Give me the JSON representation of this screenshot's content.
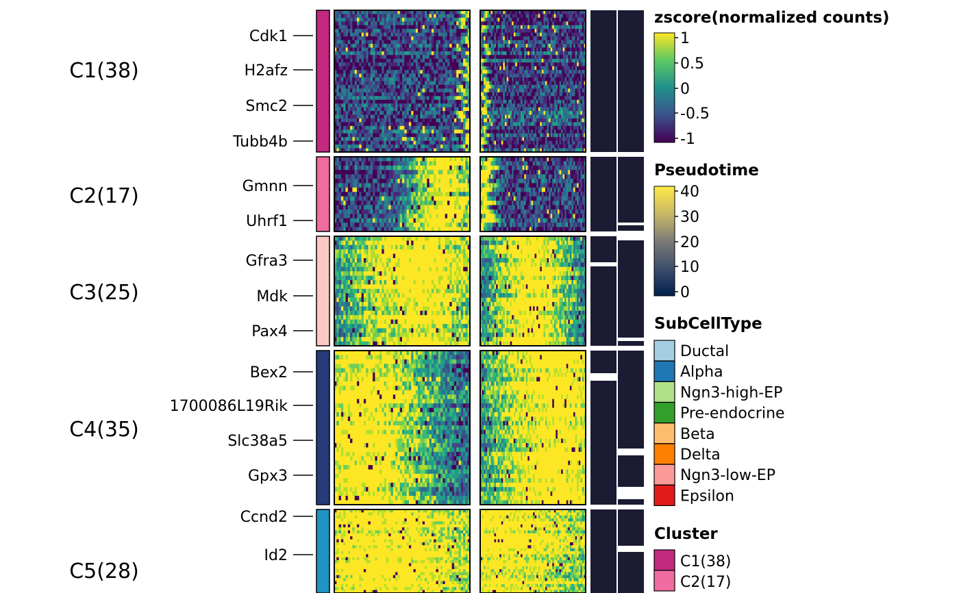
{
  "chart_data": {
    "type": "heatmap",
    "clusters": [
      {
        "id": "C1",
        "label": "C1(38)",
        "rows": 38,
        "color": "#C2297F",
        "genes": [
          "Cdk1",
          "H2afz",
          "Smc2",
          "Tubb4b"
        ],
        "peak1": [
          0.97,
          0.02
        ],
        "peak2": [
          0.02,
          0.02
        ]
      },
      {
        "id": "C2",
        "label": "C2(17)",
        "rows": 17,
        "color": "#F06BA0",
        "genes": [
          "Gmnn",
          "Uhrf1"
        ],
        "peak1": [
          0.8,
          0.18
        ],
        "peak2": [
          0.05,
          0.06
        ]
      },
      {
        "id": "C3",
        "label": "C3(25)",
        "rows": 25,
        "color": "#FBC7C2",
        "genes": [
          "Gfra3",
          "Mdk",
          "Pax4"
        ],
        "peak1": [
          0.62,
          0.42
        ],
        "peak2": [
          0.48,
          0.3
        ]
      },
      {
        "id": "C4",
        "label": "C4(35)",
        "rows": 35,
        "color": "#263B78",
        "genes": [
          "Bex2",
          "1700086L19Rik",
          "Slc38a5",
          "Gpx3"
        ],
        "peak1": [
          0.2,
          0.4
        ],
        "peak2": [
          0.72,
          0.5
        ]
      },
      {
        "id": "C5",
        "label": "C5(28)",
        "rows": 28,
        "color": "#1F93C3",
        "genes": [
          "Ccnd2",
          "Id2"
        ],
        "peak1": [
          0.35,
          0.75
        ],
        "peak2": [
          0.1,
          0.92
        ]
      }
    ],
    "lineages": 2,
    "zscore_legend": {
      "title": "zscore(normalized counts)",
      "ticks": [
        "1",
        "0.5",
        "0",
        "-0.5",
        "-1"
      ],
      "colors": [
        "#FDE725",
        "#5DC863",
        "#21908C",
        "#3B528B",
        "#440154"
      ]
    },
    "pseudotime_legend": {
      "title": "Pseudotime",
      "ticks": [
        "40",
        "30",
        "20",
        "10",
        "0"
      ],
      "colors": [
        "#FFE945",
        "#C8B866",
        "#7C7B78",
        "#3E4E6C",
        "#00204D"
      ]
    },
    "subcelltype_legend": {
      "title": "SubCellType",
      "items": [
        {
          "label": "Ductal",
          "color": "#A6CEE3"
        },
        {
          "label": "Alpha",
          "color": "#1F78B4"
        },
        {
          "label": "Ngn3-high-EP",
          "color": "#B2DF8A"
        },
        {
          "label": "Pre-endocrine",
          "color": "#33A02C"
        },
        {
          "label": "Beta",
          "color": "#FDBF6F"
        },
        {
          "label": "Delta",
          "color": "#FF7F00"
        },
        {
          "label": "Ngn3-low-EP",
          "color": "#FB9A99"
        },
        {
          "label": "Epsilon",
          "color": "#E31A1C"
        }
      ]
    },
    "cluster_legend": {
      "title": "Cluster",
      "items": [
        {
          "label": "C1(38)",
          "color": "#C2297F"
        },
        {
          "label": "C2(17)",
          "color": "#F06BA0"
        }
      ]
    },
    "annotation_bar_color": "#1B1B33"
  }
}
